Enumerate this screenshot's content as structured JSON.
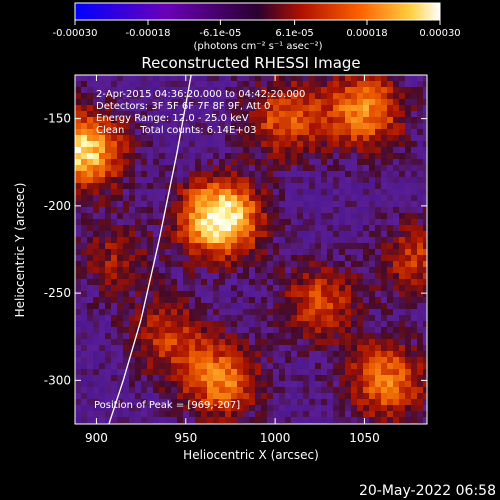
{
  "chart_data": {
    "type": "heatmap",
    "title": "Reconstructed RHESSI Image",
    "xlabel": "Heliocentric X (arcsec)",
    "ylabel": "Heliocentric Y (arcsec)",
    "xlim": [
      888,
      1085
    ],
    "ylim": [
      -325,
      -125
    ],
    "x_ticks": [
      "900",
      "950",
      "1000",
      "1050"
    ],
    "x_tick_values": [
      900,
      950,
      1000,
      1050
    ],
    "y_ticks": [
      "-150",
      "-200",
      "-250",
      "-300"
    ],
    "y_tick_values": [
      -150,
      -200,
      -250,
      -300
    ],
    "colorbar": {
      "ticks": [
        "-0.00030",
        "-0.00018",
        "-6.1e-05",
        "6.1e-05",
        "0.00018",
        "0.00030"
      ],
      "tick_values": [
        -0.0003,
        -0.00018,
        -6.1e-05,
        6.1e-05,
        0.00018,
        0.0003
      ],
      "range": [
        -0.0003,
        0.0003
      ],
      "unit": "(photons cm⁻² s⁻¹ asec⁻²)"
    },
    "annotations": {
      "time": "2-Apr-2015 04:36:20.000 to 04:42:20.000",
      "detectors": "Detectors: 3F 5F 6F 7F 8F 9F, Att 0",
      "energy": "Energy Range: 12.0 - 25.0 keV",
      "clean": "Clean     Total counts: 6.14E+03",
      "peak": "Position of Peak = [969,-207]"
    },
    "peak": {
      "x": 969,
      "y": -207
    },
    "sources": [
      {
        "x": 969,
        "y": -207,
        "amp": 1.0
      },
      {
        "x": 893,
        "y": -168,
        "amp": 0.85
      },
      {
        "x": 1050,
        "y": -145,
        "amp": 0.65
      },
      {
        "x": 1005,
        "y": -150,
        "amp": 0.5
      },
      {
        "x": 970,
        "y": -300,
        "amp": 0.6
      },
      {
        "x": 1062,
        "y": -300,
        "amp": 0.6
      },
      {
        "x": 940,
        "y": -275,
        "amp": 0.4
      },
      {
        "x": 1025,
        "y": -255,
        "amp": 0.45
      },
      {
        "x": 1080,
        "y": -230,
        "amp": 0.4
      },
      {
        "x": 910,
        "y": -230,
        "amp": 0.3
      }
    ],
    "limb_curve": [
      [
        953,
        -125
      ],
      [
        945,
        -170
      ],
      [
        935,
        -220
      ],
      [
        925,
        -265
      ],
      [
        915,
        -300
      ],
      [
        907,
        -325
      ]
    ]
  },
  "footer": {
    "timestamp": "20-May-2022 06:58"
  }
}
